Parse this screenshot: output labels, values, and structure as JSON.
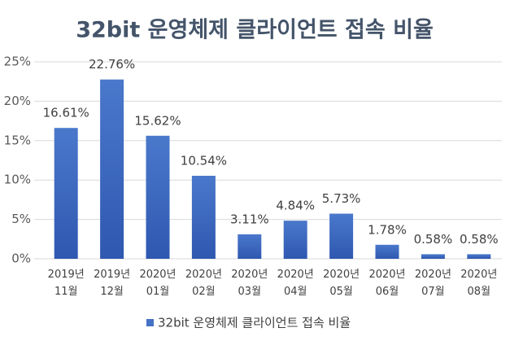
{
  "chart_data": {
    "type": "bar",
    "title": "32bit 운영체제 클라이언트 접속 비율",
    "categories": [
      "2019년 11월",
      "2019년 12월",
      "2020년 01월",
      "2020년 02월",
      "2020년 03월",
      "2020년 04월",
      "2020년 05월",
      "2020년 06월",
      "2020년 07월",
      "2020년 08월"
    ],
    "series": [
      {
        "name": "32bit 운영체제 클라이언트 접속 비율",
        "color": "#4472c4",
        "values": [
          16.61,
          22.76,
          15.62,
          10.54,
          3.11,
          4.84,
          5.73,
          1.78,
          0.58,
          0.58
        ],
        "value_labels": [
          "16.61%",
          "22.76%",
          "15.62%",
          "10.54%",
          "3.11%",
          "4.84%",
          "5.73%",
          "1.78%",
          "0.58%",
          "0.58%"
        ]
      }
    ],
    "ylim": [
      0,
      25
    ],
    "yticks": [
      {
        "value": 0,
        "label": "0%"
      },
      {
        "value": 5,
        "label": "5%"
      },
      {
        "value": 10,
        "label": "10%"
      },
      {
        "value": 15,
        "label": "15%"
      },
      {
        "value": 20,
        "label": "20%"
      },
      {
        "value": 25,
        "label": "25%"
      }
    ],
    "grid": true,
    "legend": "bottom"
  }
}
